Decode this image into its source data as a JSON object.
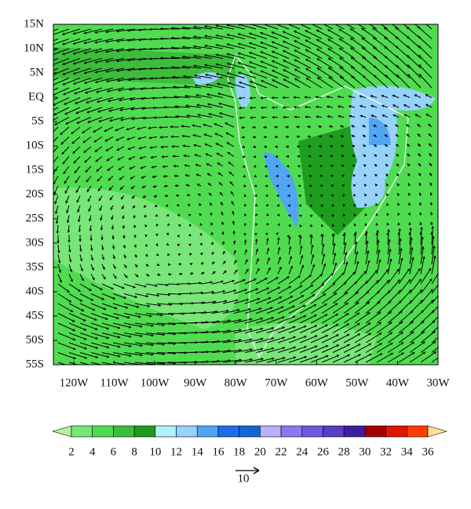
{
  "map": {
    "lat_labels": [
      "15N",
      "10N",
      "5N",
      "EQ",
      "5S",
      "10S",
      "15S",
      "20S",
      "25S",
      "30S",
      "35S",
      "40S",
      "45S",
      "50S",
      "55S"
    ],
    "lon_labels": [
      "120W",
      "110W",
      "100W",
      "90W",
      "80W",
      "70W",
      "60W",
      "50W",
      "40W",
      "30W"
    ]
  },
  "colorbar": {
    "levels": [
      2,
      4,
      6,
      8,
      10,
      12,
      14,
      16,
      18,
      20,
      22,
      24,
      26,
      28,
      30,
      32,
      34,
      36
    ],
    "colors": [
      "#b4f0a0",
      "#78e678",
      "#50dc50",
      "#3cbe3c",
      "#1e9e1e",
      "#b4f0fa",
      "#96d2fa",
      "#50a5f5",
      "#1e6eeb",
      "#1464d2",
      "#b4b4fa",
      "#8c78f0",
      "#6e5adc",
      "#5a3cc8",
      "#3c1ea0",
      "#a00000",
      "#e11400",
      "#ff3c00",
      "#fae196"
    ]
  },
  "reference_vector": {
    "label": "10"
  }
}
